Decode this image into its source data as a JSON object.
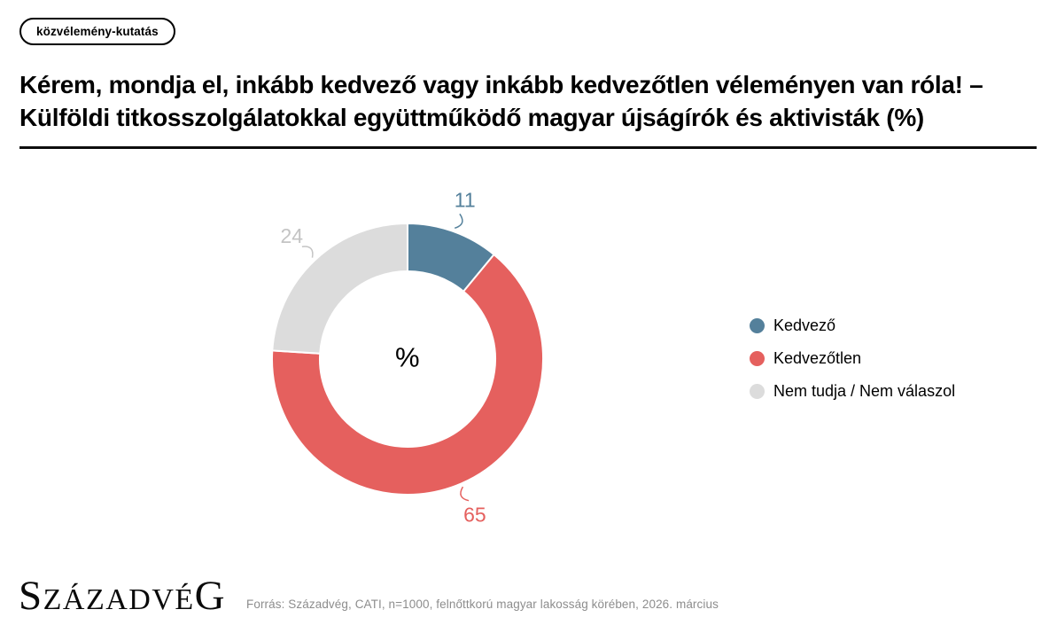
{
  "badge": {
    "label": "közvélemény-kutatás"
  },
  "title": {
    "line1": "Kérem, mondja el, inkább kedvező vagy inkább kedvezőtlen véleményen van róla! –",
    "line2": "Külföldi titkosszolgálatokkal együttműködő magyar újságírók és aktivisták (%)"
  },
  "chart_data": {
    "type": "pie",
    "subtype": "donut",
    "unit": "%",
    "center_label": "%",
    "start_angle_deg": 0,
    "direction": "clockwise",
    "legend_position": "right",
    "total": 100,
    "segments": [
      {
        "label": "Kedvező",
        "value": 11,
        "color": "#54809b",
        "label_color": "#54809b"
      },
      {
        "label": "Kedvezőtlen",
        "value": 65,
        "color": "#e5605e",
        "label_color": "#e5605e"
      },
      {
        "label": "Nem tudja / Nem válaszol",
        "value": 24,
        "color": "#dcdcdc",
        "label_color": "#c4c4c4"
      }
    ]
  },
  "footer": {
    "logo_lead": "S",
    "logo_mid": "ZÁZADVÉ",
    "logo_tail": "G",
    "source": "Forrás: Századvég, CATI, n=1000, felnőttkorú magyar lakosság körében, 2026. március"
  }
}
